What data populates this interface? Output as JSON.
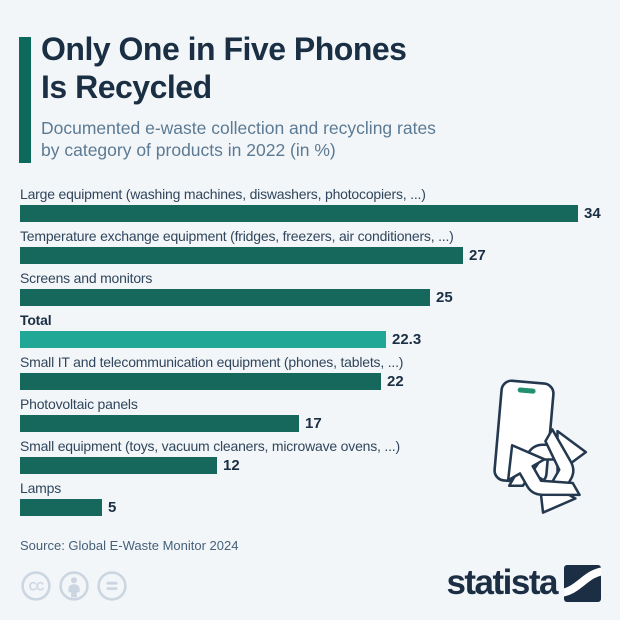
{
  "header": {
    "title_line1": "Only One in Five Phones",
    "title_line2": "Is Recycled",
    "subtitle_line1": "Documented e-waste collection and recycling rates",
    "subtitle_line2": "by category of products in 2022 (in %)",
    "accent_color": "#0e695d"
  },
  "chart_data": {
    "type": "bar",
    "orientation": "horizontal",
    "title": "Only One in Five Phones Is Recycled",
    "subtitle": "Documented e-waste collection and recycling rates by category of products in 2022 (in %)",
    "unit": "%",
    "xlim": [
      0,
      34
    ],
    "grid": false,
    "legend": false,
    "categories": [
      "Large equipment (washing machines, diswashers, photocopiers, ...)",
      "Temperature exchange equipment (fridges, freezers, air conditioners, ...)",
      "Screens and monitors",
      "Total",
      "Small IT and telecommunication equipment (phones, tablets, ...)",
      "Photovoltaic panels",
      "Small equipment (toys, vacuum cleaners, microwave ovens, ...)",
      "Lamps"
    ],
    "values": [
      34,
      27,
      25,
      22.3,
      22,
      17,
      12,
      5
    ],
    "emphasis_index": 3,
    "bar_color": "#16685d",
    "highlight_color": "#20a795"
  },
  "illustration": {
    "icons": [
      "phone-icon",
      "recycling-icon"
    ],
    "phone_camera_color": "#22916f",
    "outline_color": "#24384f"
  },
  "footer": {
    "source": "Source: Global E-Waste Monitor 2024",
    "license_icons": [
      "cc-icon",
      "attribution-person-icon",
      "equals-icon"
    ],
    "license_color": "#ccd6e1",
    "brand": "statista",
    "brand_color": "#1b2e44"
  }
}
